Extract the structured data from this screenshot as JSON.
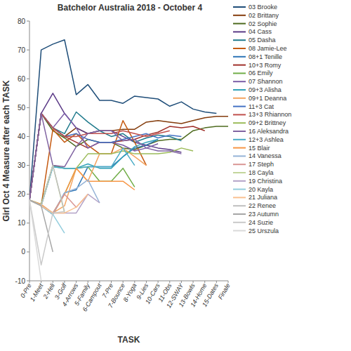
{
  "chart_data": {
    "type": "line",
    "title": "Batchelor Australia 2018 - October 4",
    "x_label": "TASK",
    "y_label": "Girl Oct 4 Measure after each TASK",
    "categories": [
      "0-Pre",
      "1-Meet",
      "2-Heli",
      "3-Golf",
      "4-Arrows",
      "5-Family",
      "6-Campout",
      "7-Pre",
      "7-Bounce",
      "8-Yoga",
      "9-Lies",
      "10-Cars",
      "11-Obs",
      "12-SWAY",
      "13-Bowls",
      "14-Home",
      "15-Dates",
      "Finale"
    ],
    "ylim": [
      -10,
      80
    ],
    "yticks": [
      -10,
      0,
      10,
      20,
      30,
      40,
      50,
      60,
      70,
      80
    ],
    "grid": false,
    "legend": "right",
    "series": [
      {
        "name": "03 Brooke",
        "color": "#1f4e79",
        "values": [
          18,
          70,
          72,
          73.5,
          54.5,
          58,
          52.5,
          52.5,
          51.5,
          54,
          53.5,
          53,
          50.5,
          52,
          49.5,
          48.5,
          48,
          null
        ]
      },
      {
        "name": "02 Brittany",
        "color": "#843c0c",
        "values": [
          18,
          48,
          43,
          40,
          43,
          41,
          42,
          42,
          42.5,
          42.5,
          45,
          45.5,
          45,
          44.5,
          45.5,
          46.5,
          47,
          47
        ]
      },
      {
        "name": "02 Sophie",
        "color": "#4e6b1f",
        "values": [
          18,
          48,
          42,
          39.5,
          36.5,
          39,
          38,
          38,
          36,
          35.5,
          37,
          38.5,
          39,
          39,
          42,
          43,
          43.5,
          43.5
        ]
      },
      {
        "name": "04 Cass",
        "color": "#5b3a87",
        "values": [
          18,
          48,
          55,
          48,
          43,
          41,
          42,
          42,
          40,
          38,
          37,
          36,
          35.5,
          34.5,
          null,
          null,
          null,
          null
        ]
      },
      {
        "name": "05 Dasha",
        "color": "#1f7a8c",
        "values": [
          18,
          48,
          43,
          41,
          48.5,
          45,
          42,
          40,
          41,
          38,
          39.5,
          40.5,
          40,
          38.5,
          null,
          null,
          null,
          null
        ]
      },
      {
        "name": "08 Jamie-Lee",
        "color": "#c55a11",
        "values": [
          18,
          16,
          42.5,
          38,
          41,
          37,
          34,
          34,
          45.5,
          38,
          30,
          null,
          null,
          null,
          null,
          null,
          null,
          null
        ]
      },
      {
        "name": "08+1 Tenille",
        "color": "#2e75b6",
        "values": [
          18,
          16,
          13,
          20.5,
          21.5,
          29.5,
          29.5,
          29.5,
          33,
          36,
          37,
          39,
          null,
          null,
          null,
          null,
          null,
          null
        ]
      },
      {
        "name": "10+3 Romy",
        "color": "#a0302a",
        "values": [
          18,
          48,
          43,
          40,
          38,
          36,
          38,
          38,
          38.5,
          39,
          40.5,
          41.5,
          43.5,
          43,
          43.5,
          42,
          null,
          null
        ]
      },
      {
        "name": "06 Emily",
        "color": "#70ad47",
        "values": [
          18,
          16.5,
          30,
          29,
          29,
          29.5,
          24.5,
          24.5,
          29,
          22.5,
          null,
          null,
          null,
          null,
          null,
          null,
          null,
          null
        ]
      },
      {
        "name": "07 Shannon",
        "color": "#7b5ea7",
        "values": [
          18,
          48,
          43,
          48,
          43,
          36,
          38,
          38,
          37,
          35,
          36,
          37.5,
          null,
          null,
          null,
          null,
          null,
          null
        ]
      },
      {
        "name": "09+3 Alisha",
        "color": "#31a2b8",
        "values": [
          18,
          16,
          29.5,
          29,
          29,
          30.5,
          29,
          29,
          33,
          36.5,
          38,
          39,
          null,
          null,
          null,
          null,
          null,
          null
        ]
      },
      {
        "name": "09+1 Deanna",
        "color": "#f4a460",
        "values": [
          18,
          16.5,
          13.5,
          16,
          29,
          24.5,
          34,
          34,
          36,
          33,
          30,
          null,
          null,
          null,
          null,
          null,
          null,
          null
        ]
      },
      {
        "name": "11+3 Cat",
        "color": "#4472c4",
        "values": [
          18,
          48,
          43,
          40,
          41,
          39,
          38,
          38,
          39,
          40,
          41,
          39.5,
          40.5,
          40,
          null,
          null,
          null,
          null
        ]
      },
      {
        "name": "13+3 Rhiannon",
        "color": "#c0504d",
        "values": [
          18,
          48,
          43,
          40,
          40,
          41,
          41,
          41,
          42,
          41,
          40,
          41,
          42,
          null,
          null,
          null,
          null,
          null
        ]
      },
      {
        "name": "09+2 Brittney",
        "color": "#9bbb59",
        "values": [
          18,
          16,
          13.5,
          20,
          29,
          34,
          34,
          34,
          35,
          34,
          34,
          34,
          34.5,
          36,
          35,
          null,
          null,
          null
        ]
      },
      {
        "name": "16 Aleksandra",
        "color": "#8064a2",
        "values": [
          18,
          48,
          30,
          29.5,
          36.5,
          41,
          42,
          42,
          38.5,
          39,
          36,
          35,
          35,
          34,
          null,
          null,
          null,
          null
        ]
      },
      {
        "name": "12+3 Ashlea",
        "color": "#4bacc6",
        "values": [
          18,
          16,
          29.5,
          29,
          29,
          29.5,
          29.5,
          29.5,
          36,
          30,
          null,
          null,
          null,
          null,
          null,
          null,
          null,
          null
        ]
      },
      {
        "name": "15 Blair",
        "color": "#f79646",
        "values": [
          18,
          16,
          13,
          20,
          29,
          24.5,
          24.5,
          24.5,
          24.5,
          21.5,
          null,
          null,
          null,
          null,
          null,
          null,
          null,
          null
        ]
      },
      {
        "name": "14 Vanessa",
        "color": "#95b3d7",
        "values": [
          18,
          16,
          13,
          20.5,
          22,
          25,
          17,
          null,
          null,
          null,
          null,
          null,
          null,
          null,
          null,
          null,
          null,
          null
        ]
      },
      {
        "name": "17 Steph",
        "color": "#d99694",
        "values": [
          18,
          16,
          13.5,
          20,
          15.5,
          20,
          null,
          null,
          null,
          null,
          null,
          null,
          null,
          null,
          null,
          null,
          null,
          null
        ]
      },
      {
        "name": "18 Cayla",
        "color": "#c3d69b",
        "values": [
          18,
          16,
          30,
          13.5,
          null,
          null,
          null,
          null,
          null,
          null,
          null,
          null,
          null,
          null,
          null,
          null,
          null,
          null
        ]
      },
      {
        "name": "19 Christina",
        "color": "#b3a2c7",
        "values": [
          18,
          16,
          13.5,
          13.5,
          13.5,
          20,
          17,
          null,
          null,
          null,
          null,
          null,
          null,
          null,
          null,
          null,
          null,
          null
        ]
      },
      {
        "name": "20 Kayla",
        "color": "#93cddd",
        "values": [
          18,
          16,
          13,
          6.5,
          null,
          null,
          null,
          null,
          null,
          null,
          null,
          null,
          null,
          null,
          null,
          null,
          null,
          null
        ]
      },
      {
        "name": "21 Juliana",
        "color": "#fac090",
        "values": [
          18,
          16,
          13.5,
          13.5,
          15.5,
          20,
          null,
          null,
          null,
          null,
          null,
          null,
          null,
          null,
          null,
          null,
          null,
          null
        ]
      },
      {
        "name": "22 Renee",
        "color": "#bfbfbf",
        "values": [
          18,
          16,
          30,
          14,
          null,
          null,
          null,
          null,
          null,
          null,
          null,
          null,
          null,
          null,
          null,
          null,
          null,
          null
        ]
      },
      {
        "name": "23 Autumn",
        "color": "#a6a6a6",
        "values": [
          18,
          16,
          0,
          null,
          null,
          null,
          null,
          null,
          null,
          null,
          null,
          null,
          null,
          null,
          null,
          null,
          null,
          null
        ]
      },
      {
        "name": "24 Suzie",
        "color": "#c9c9c9",
        "values": [
          18,
          -4.5,
          13.5,
          14,
          null,
          null,
          null,
          null,
          null,
          null,
          null,
          null,
          null,
          null,
          null,
          null,
          null,
          null
        ]
      },
      {
        "name": "25 Urszula",
        "color": "#d9d9d9",
        "values": [
          18,
          -10,
          null,
          null,
          null,
          null,
          null,
          null,
          null,
          null,
          null,
          null,
          null,
          null,
          null,
          null,
          null,
          null
        ]
      }
    ]
  }
}
